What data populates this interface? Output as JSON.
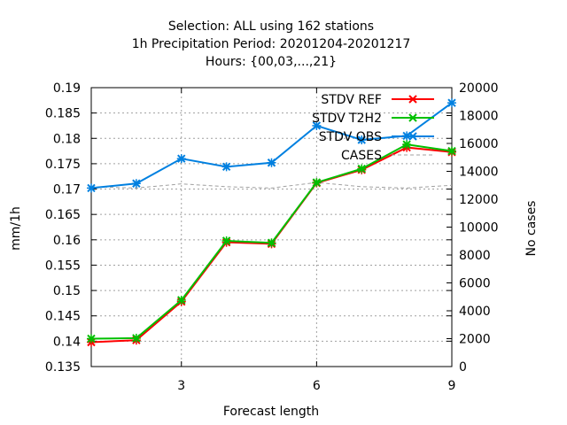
{
  "chart_data": {
    "type": "line",
    "title_lines": [
      "Selection: ALL using   162 stations",
      "1h Precipitation   Period: 20201204-20201217",
      "Hours: {00,03,...,21}"
    ],
    "xlabel": "Forecast length",
    "ylabel": "mm/1h",
    "y2label": "No cases",
    "xlim": [
      1,
      9
    ],
    "ylim": [
      0.135,
      0.19
    ],
    "y2lim": [
      0,
      20000
    ],
    "x_ticks": [
      3,
      6,
      9
    ],
    "y_ticks": [
      "0.135",
      "0.14",
      "0.145",
      "0.15",
      "0.155",
      "0.16",
      "0.165",
      "0.17",
      "0.175",
      "0.18",
      "0.185",
      "0.19"
    ],
    "y2_ticks": [
      "0",
      "2000",
      "4000",
      "6000",
      "8000",
      "10000",
      "12000",
      "14000",
      "16000",
      "18000",
      "20000"
    ],
    "grid": true,
    "legend_position": "top-right",
    "x": [
      1,
      2,
      3,
      4,
      5,
      6,
      7,
      8,
      9
    ],
    "series": [
      {
        "name": "STDV REF",
        "color": "#ff0000",
        "axis": "left",
        "marker": "x",
        "values": [
          0.1398,
          0.1402,
          0.1478,
          0.1595,
          0.1592,
          0.1712,
          0.1738,
          0.1782,
          0.1773
        ]
      },
      {
        "name": "STDV T2H2",
        "color": "#00c000",
        "axis": "left",
        "marker": "x",
        "values": [
          0.1405,
          0.1406,
          0.1481,
          0.1598,
          0.1594,
          0.1713,
          0.174,
          0.1788,
          0.1775
        ]
      },
      {
        "name": "STDV OBS",
        "color": "#0080e0",
        "axis": "left",
        "marker": "x",
        "values": [
          0.1702,
          0.1711,
          0.176,
          0.1744,
          0.1752,
          0.1825,
          0.1797,
          0.1805,
          0.187
        ]
      },
      {
        "name": "CASES",
        "color": "#a0a0a0",
        "axis": "right",
        "marker": "none",
        "dashed": true,
        "values": [
          12900,
          12800,
          13100,
          12900,
          12800,
          13200,
          12900,
          12800,
          13000
        ]
      }
    ]
  }
}
